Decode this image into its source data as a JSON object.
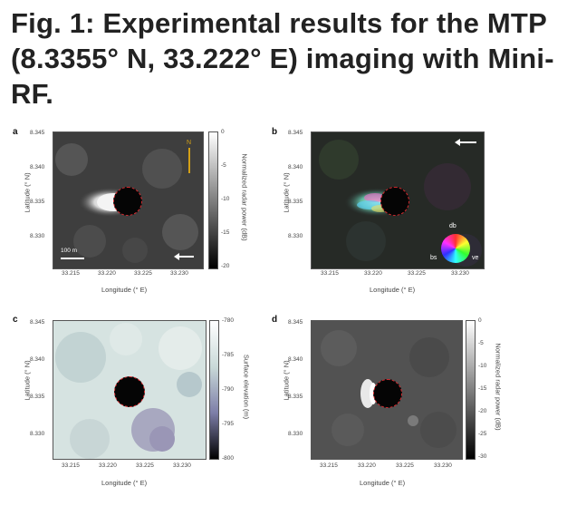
{
  "title": "Fig. 1: Experimental results for the MTP (8.3355° N, 33.222° E) imaging with Mini-RF.",
  "panels": {
    "a": {
      "label": "a",
      "y_ticks": [
        "8.345",
        "8.340",
        "8.335",
        "8.330"
      ],
      "x_ticks": [
        "33.215",
        "33.220",
        "33.225",
        "33.230"
      ],
      "xlabel": "Longitude (° E)",
      "ylabel": "Latitude (° N)",
      "colorbar_ticks": [
        "0",
        "-5",
        "-10",
        "-15",
        "-20"
      ],
      "colorbar_label": "Normalized radar power (dB)",
      "north_label": "N",
      "scale_label": "100 m"
    },
    "b": {
      "label": "b",
      "y_ticks": [
        "8.345",
        "8.340",
        "8.335",
        "8.330"
      ],
      "x_ticks": [
        "33.215",
        "33.220",
        "33.225",
        "33.230"
      ],
      "xlabel": "Longitude (° E)",
      "ylabel": "Latitude (° N)",
      "wheel_labels": {
        "top": "db",
        "left": "bs",
        "right": "ve"
      }
    },
    "c": {
      "label": "c",
      "y_ticks": [
        "8.345",
        "8.340",
        "8.335",
        "8.330"
      ],
      "x_ticks": [
        "33.215",
        "33.220",
        "33.225",
        "33.230"
      ],
      "xlabel": "Longitude (° E)",
      "ylabel": "Latitude (° N)",
      "colorbar_ticks": [
        "-780",
        "-785",
        "-790",
        "-795",
        "-800"
      ],
      "colorbar_label": "Surface elevation (m)"
    },
    "d": {
      "label": "d",
      "y_ticks": [
        "8.345",
        "8.340",
        "8.335",
        "8.330"
      ],
      "x_ticks": [
        "33.215",
        "33.220",
        "33.225",
        "33.230"
      ],
      "xlabel": "Longitude (° E)",
      "ylabel": "Latitude (° N)",
      "colorbar_ticks": [
        "0",
        "-5",
        "-10",
        "-15",
        "-20",
        "-25",
        "-30"
      ],
      "colorbar_label": "Normalized radar power (dB)"
    }
  }
}
